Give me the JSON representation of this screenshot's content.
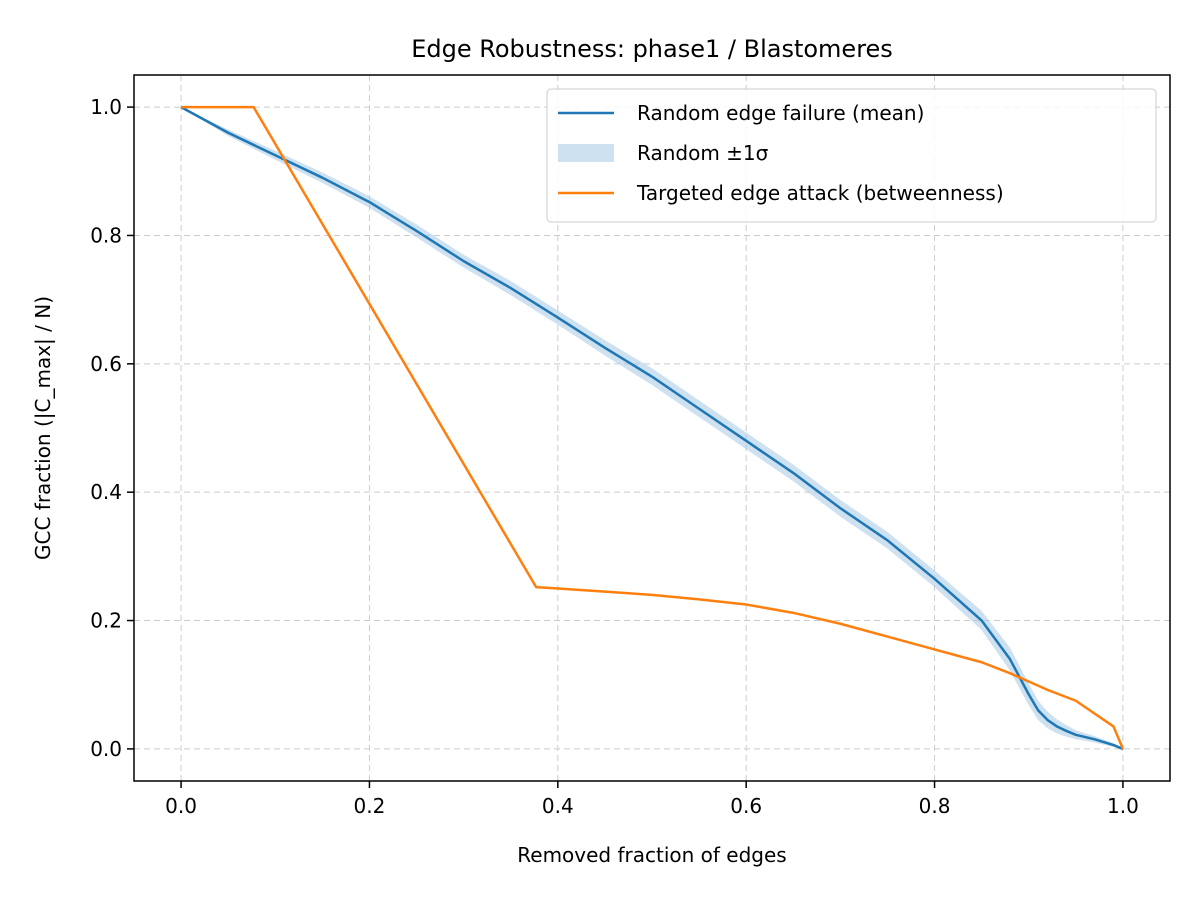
{
  "chart_data": {
    "type": "line",
    "title": "Edge Robustness: phase1 / Blastomeres",
    "xlabel": "Removed fraction of edges",
    "ylabel": "GCC fraction (|C_max| / N)",
    "xlim": [
      -0.05,
      1.05
    ],
    "ylim": [
      -0.05,
      1.05
    ],
    "xticks": [
      0.0,
      0.2,
      0.4,
      0.6,
      0.8,
      1.0
    ],
    "yticks": [
      0.0,
      0.2,
      0.4,
      0.6,
      0.8,
      1.0
    ],
    "xtick_labels": [
      "0.0",
      "0.2",
      "0.4",
      "0.6",
      "0.8",
      "1.0"
    ],
    "ytick_labels": [
      "0.0",
      "0.2",
      "0.4",
      "0.6",
      "0.8",
      "1.0"
    ],
    "grid": true,
    "legend_position": "top-right",
    "series": [
      {
        "name": "Random edge failure (mean)",
        "kind": "line",
        "color": "#1f77b4",
        "x": [
          0.0,
          0.05,
          0.1,
          0.15,
          0.2,
          0.25,
          0.3,
          0.35,
          0.4,
          0.45,
          0.5,
          0.55,
          0.6,
          0.65,
          0.7,
          0.75,
          0.8,
          0.85,
          0.88,
          0.9,
          0.91,
          0.92,
          0.93,
          0.94,
          0.95,
          0.97,
          0.99,
          1.0
        ],
        "y": [
          1.0,
          0.96,
          0.925,
          0.89,
          0.852,
          0.807,
          0.76,
          0.718,
          0.672,
          0.625,
          0.58,
          0.53,
          0.48,
          0.43,
          0.375,
          0.325,
          0.265,
          0.2,
          0.14,
          0.085,
          0.06,
          0.045,
          0.035,
          0.028,
          0.022,
          0.015,
          0.006,
          0.0
        ]
      },
      {
        "name": "Random ±1σ",
        "kind": "band",
        "color": "#a6c8e3",
        "x": [
          0.0,
          0.05,
          0.1,
          0.15,
          0.2,
          0.25,
          0.3,
          0.35,
          0.4,
          0.45,
          0.5,
          0.55,
          0.6,
          0.65,
          0.7,
          0.75,
          0.8,
          0.85,
          0.88,
          0.9,
          0.91,
          0.92,
          0.93,
          0.94,
          0.95,
          0.97,
          0.99,
          1.0
        ],
        "y_lower": [
          1.0,
          0.955,
          0.918,
          0.882,
          0.843,
          0.797,
          0.75,
          0.707,
          0.661,
          0.613,
          0.567,
          0.517,
          0.467,
          0.417,
          0.362,
          0.312,
          0.252,
          0.185,
          0.122,
          0.068,
          0.045,
          0.032,
          0.024,
          0.019,
          0.015,
          0.01,
          0.003,
          0.0
        ],
        "y_upper": [
          1.0,
          0.965,
          0.932,
          0.898,
          0.861,
          0.817,
          0.77,
          0.729,
          0.683,
          0.637,
          0.593,
          0.543,
          0.493,
          0.443,
          0.388,
          0.338,
          0.278,
          0.215,
          0.158,
          0.102,
          0.075,
          0.058,
          0.046,
          0.037,
          0.029,
          0.02,
          0.009,
          0.0
        ]
      },
      {
        "name": "Targeted edge attack (betweenness)",
        "kind": "line",
        "color": "#ff7f0e",
        "x": [
          0.0,
          0.077,
          0.377,
          0.4,
          0.45,
          0.5,
          0.55,
          0.6,
          0.65,
          0.7,
          0.75,
          0.8,
          0.85,
          0.88,
          0.9,
          0.92,
          0.95,
          0.97,
          0.99,
          1.0
        ],
        "y": [
          1.0,
          1.0,
          0.252,
          0.25,
          0.245,
          0.24,
          0.233,
          0.225,
          0.212,
          0.195,
          0.175,
          0.155,
          0.135,
          0.118,
          0.105,
          0.092,
          0.075,
          0.055,
          0.035,
          0.0
        ]
      }
    ]
  }
}
